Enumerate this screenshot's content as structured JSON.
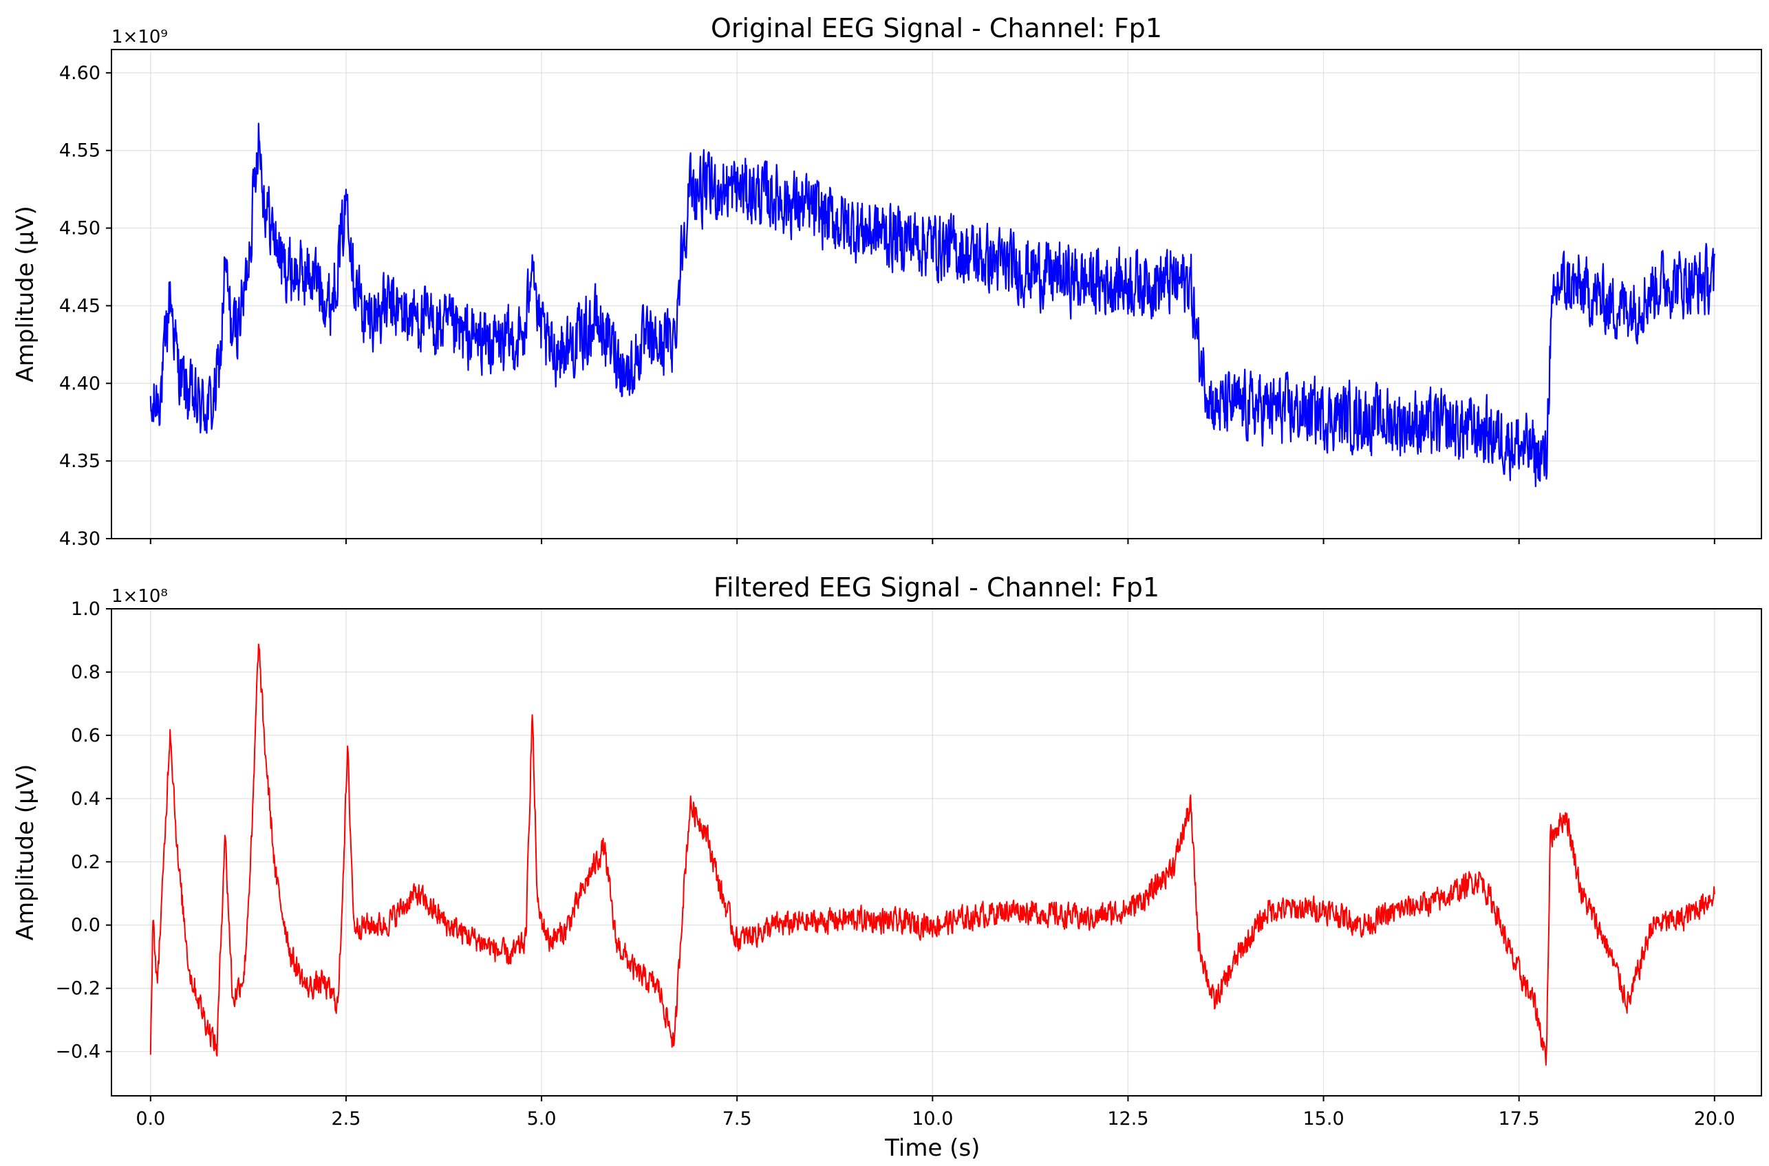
{
  "chart_data": [
    {
      "type": "line",
      "title": "Original EEG Signal - Channel: Fp1",
      "xlabel": "",
      "ylabel": "Amplitude (μV)",
      "y_offset_label": "1×10⁹",
      "y_offset_multiplier": 1000000000,
      "xlim": [
        -0.5,
        20.6
      ],
      "ylim": [
        4.3,
        4.615
      ],
      "x_ticks": [
        0.0,
        2.5,
        5.0,
        7.5,
        10.0,
        12.5,
        15.0,
        17.5,
        20.0
      ],
      "x_tick_labels": [],
      "y_ticks": [
        4.3,
        4.35,
        4.4,
        4.45,
        4.5,
        4.55,
        4.6
      ],
      "y_tick_labels": [
        "4.30",
        "4.35",
        "4.40",
        "4.45",
        "4.50",
        "4.55",
        "4.60"
      ],
      "grid": true,
      "color": "#0000ff",
      "noise_band": 0.038,
      "series": [
        {
          "x": [
            0.0,
            0.05,
            0.15,
            0.25,
            0.35,
            0.45,
            0.6,
            0.8,
            0.9,
            0.95,
            1.05,
            1.2,
            1.3,
            1.38,
            1.45,
            1.55,
            1.7,
            1.9,
            2.1,
            2.3,
            2.45,
            2.52,
            2.6,
            2.75,
            3.0,
            3.5,
            4.0,
            4.5,
            4.8,
            4.88,
            4.95,
            5.1,
            5.4,
            5.7,
            5.95,
            6.1,
            6.3,
            6.5,
            6.7,
            6.8,
            6.9,
            7.2,
            7.5,
            8.0,
            9.0,
            10.0,
            11.0,
            12.0,
            12.5,
            13.0,
            13.3,
            13.4,
            13.6,
            14.0,
            15.0,
            16.0,
            17.0,
            17.5,
            17.85,
            17.9,
            18.0,
            18.3,
            18.7,
            19.0,
            19.3,
            19.7,
            20.0
          ],
          "y": [
            4.375,
            4.385,
            4.4,
            4.46,
            4.41,
            4.395,
            4.385,
            4.385,
            4.42,
            4.475,
            4.43,
            4.455,
            4.51,
            4.565,
            4.52,
            4.5,
            4.475,
            4.47,
            4.47,
            4.45,
            4.495,
            4.525,
            4.47,
            4.44,
            4.45,
            4.44,
            4.43,
            4.425,
            4.43,
            4.495,
            4.44,
            4.42,
            4.425,
            4.44,
            4.42,
            4.405,
            4.425,
            4.425,
            4.43,
            4.49,
            4.525,
            4.525,
            4.525,
            4.52,
            4.5,
            4.49,
            4.475,
            4.465,
            4.465,
            4.465,
            4.465,
            4.42,
            4.385,
            4.385,
            4.38,
            4.375,
            4.37,
            4.36,
            4.35,
            4.43,
            4.465,
            4.46,
            4.45,
            4.45,
            4.465,
            4.465,
            4.465
          ]
        }
      ]
    },
    {
      "type": "line",
      "title": "Filtered EEG Signal - Channel: Fp1",
      "xlabel": "Time (s)",
      "ylabel": "Amplitude (μV)",
      "y_offset_label": "1×10⁸",
      "y_offset_multiplier": 100000000,
      "xlim": [
        -0.5,
        20.6
      ],
      "ylim": [
        -0.54,
        1.0
      ],
      "x_ticks": [
        0.0,
        2.5,
        5.0,
        7.5,
        10.0,
        12.5,
        15.0,
        17.5,
        20.0
      ],
      "x_tick_labels": [
        "0.0",
        "2.5",
        "5.0",
        "7.5",
        "10.0",
        "12.5",
        "15.0",
        "17.5",
        "20.0"
      ],
      "y_ticks": [
        -0.4,
        -0.2,
        0.0,
        0.2,
        0.4,
        0.6,
        0.8,
        1.0
      ],
      "y_tick_labels": [
        "−0.4",
        "−0.2",
        "0.0",
        "0.2",
        "0.4",
        "0.6",
        "0.8",
        "1.0"
      ],
      "grid": true,
      "color": "#ff0000",
      "noise_band": 0.07,
      "series": [
        {
          "x": [
            0.0,
            0.03,
            0.08,
            0.15,
            0.25,
            0.35,
            0.5,
            0.7,
            0.85,
            0.95,
            1.05,
            1.2,
            1.3,
            1.38,
            1.45,
            1.6,
            1.8,
            2.0,
            2.2,
            2.4,
            2.52,
            2.6,
            2.8,
            3.0,
            3.4,
            3.8,
            4.2,
            4.6,
            4.8,
            4.88,
            4.95,
            5.1,
            5.3,
            5.6,
            5.8,
            5.95,
            6.2,
            6.5,
            6.7,
            6.8,
            6.9,
            7.1,
            7.3,
            7.5,
            8.0,
            9.0,
            10.0,
            11.0,
            12.0,
            12.5,
            12.8,
            13.1,
            13.3,
            13.4,
            13.6,
            13.9,
            14.3,
            15.0,
            15.5,
            16.0,
            16.5,
            17.0,
            17.2,
            17.4,
            17.7,
            17.85,
            17.9,
            18.1,
            18.3,
            18.6,
            18.9,
            19.2,
            19.6,
            20.0
          ],
          "y": [
            -0.42,
            0.05,
            -0.2,
            0.1,
            0.63,
            0.2,
            -0.15,
            -0.3,
            -0.39,
            0.3,
            -0.24,
            -0.15,
            0.3,
            0.9,
            0.6,
            0.15,
            -0.1,
            -0.2,
            -0.18,
            -0.25,
            0.55,
            0.0,
            0.0,
            0.0,
            0.1,
            0.0,
            -0.05,
            -0.1,
            -0.05,
            0.68,
            0.05,
            -0.05,
            -0.02,
            0.15,
            0.25,
            -0.05,
            -0.15,
            -0.2,
            -0.38,
            0.05,
            0.38,
            0.3,
            0.1,
            -0.05,
            0.0,
            0.02,
            0.0,
            0.05,
            0.02,
            0.05,
            0.1,
            0.2,
            0.38,
            -0.05,
            -0.25,
            -0.1,
            0.05,
            0.05,
            0.0,
            0.05,
            0.08,
            0.15,
            0.05,
            -0.1,
            -0.25,
            -0.42,
            0.28,
            0.35,
            0.1,
            -0.05,
            -0.25,
            0.0,
            0.02,
            0.1
          ]
        }
      ]
    }
  ]
}
